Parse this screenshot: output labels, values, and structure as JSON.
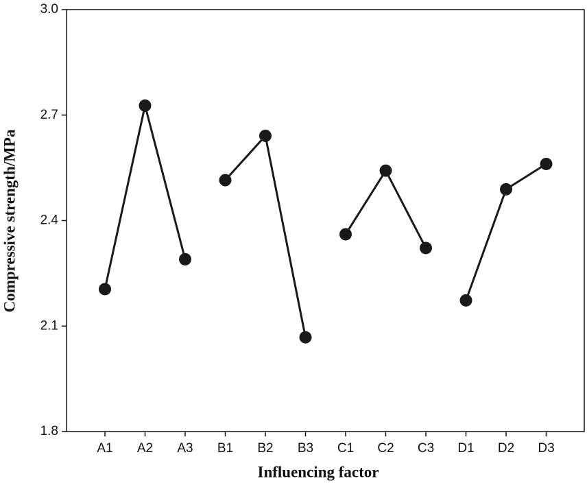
{
  "chart_data": {
    "type": "line",
    "x_label": "Influencing factor",
    "y_label": "Compressive strength/MPa",
    "categories": [
      "A1",
      "A2",
      "A3",
      "B1",
      "B2",
      "B3",
      "C1",
      "C2",
      "C3",
      "D1",
      "D2",
      "D3"
    ],
    "series": [
      {
        "color": "#1a1a1a",
        "values": [
          2.205,
          2.727,
          2.29,
          null,
          null,
          null,
          null,
          null,
          null,
          null,
          null,
          null
        ]
      },
      {
        "color": "#1a1a1a",
        "values": [
          null,
          null,
          null,
          2.515,
          2.641,
          2.068,
          null,
          null,
          null,
          null,
          null,
          null
        ]
      },
      {
        "color": "#1a1a1a",
        "values": [
          null,
          null,
          null,
          null,
          null,
          null,
          2.361,
          2.542,
          2.322,
          null,
          null,
          null
        ]
      },
      {
        "color": "#1a1a1a",
        "values": [
          null,
          null,
          null,
          null,
          null,
          null,
          null,
          null,
          null,
          2.173,
          2.489,
          2.561
        ]
      }
    ],
    "ylim": [
      1.8,
      3.0
    ],
    "yticks": [
      {
        "value": 1.8,
        "label": "1.8"
      },
      {
        "value": 2.1,
        "label": "2.1"
      },
      {
        "value": 2.4,
        "label": "2.4"
      },
      {
        "value": 2.7,
        "label": "2.7"
      },
      {
        "value": 3.0,
        "label": "3.0"
      }
    ]
  }
}
